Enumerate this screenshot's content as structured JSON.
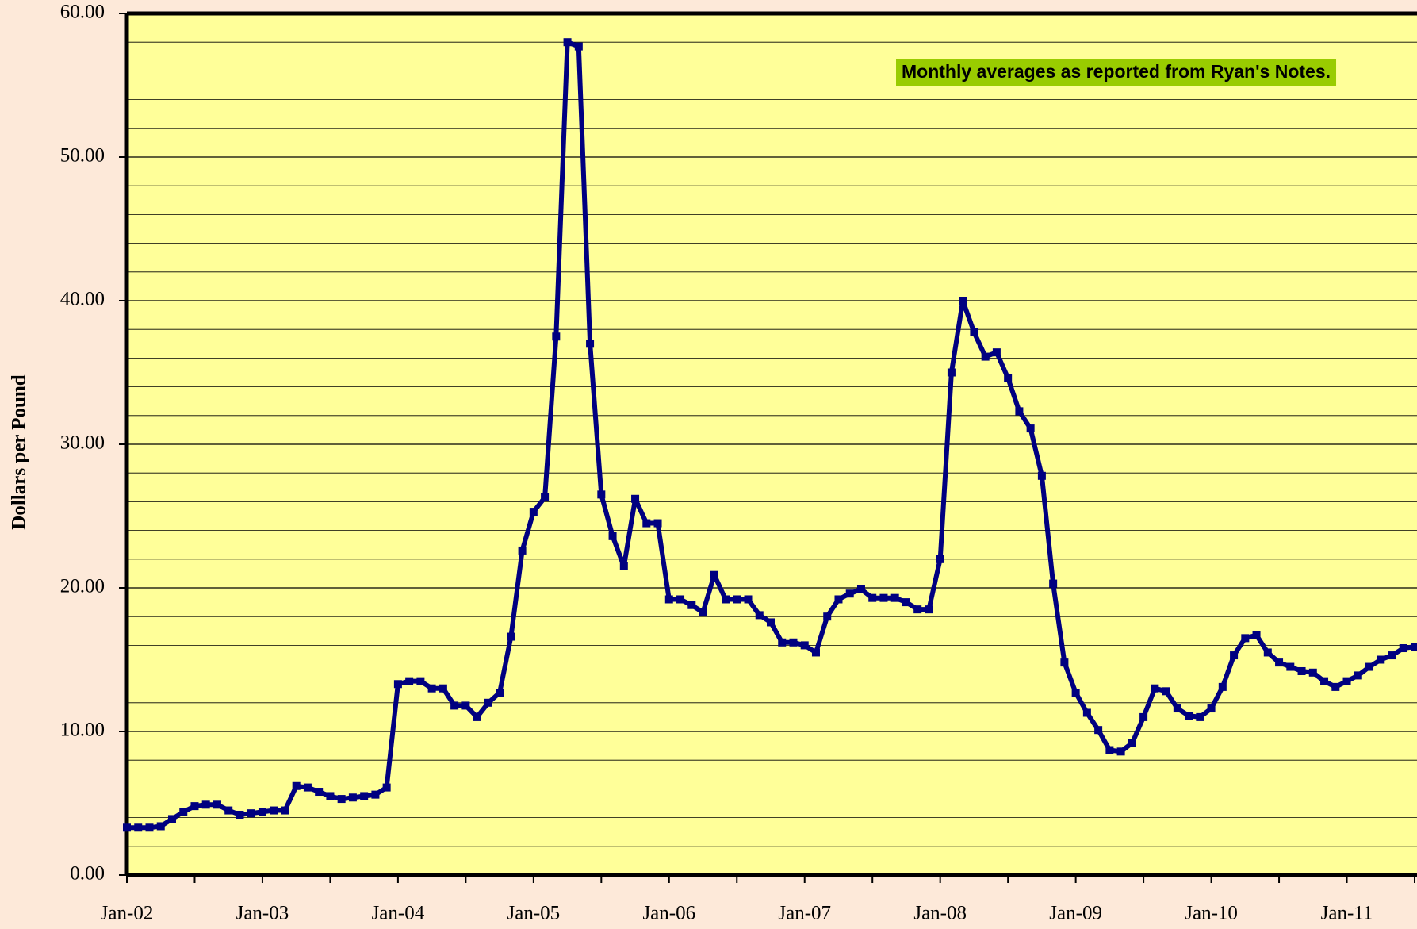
{
  "chart_data": {
    "type": "line",
    "ylabel": "Dollars per Pound",
    "annotation": "Monthly averages as reported from Ryan's Notes.",
    "categories": [
      "Jan-02",
      null,
      null,
      null,
      null,
      null,
      null,
      null,
      null,
      null,
      null,
      null,
      "Jan-03",
      null,
      null,
      null,
      null,
      null,
      null,
      null,
      null,
      null,
      null,
      null,
      "Jan-04",
      null,
      null,
      null,
      null,
      null,
      null,
      null,
      null,
      null,
      null,
      null,
      "Jan-05",
      null,
      null,
      null,
      null,
      null,
      null,
      null,
      null,
      null,
      null,
      null,
      "Jan-06",
      null,
      null,
      null,
      null,
      null,
      null,
      null,
      null,
      null,
      null,
      null,
      "Jan-07",
      null,
      null,
      null,
      null,
      null,
      null,
      null,
      null,
      null,
      null,
      null,
      "Jan-08",
      null,
      null,
      null,
      null,
      null,
      null,
      null,
      null,
      null,
      null,
      null,
      "Jan-09",
      null,
      null,
      null,
      null,
      null,
      null,
      null,
      null,
      null,
      null,
      null,
      "Jan-10",
      null,
      null,
      null,
      null,
      null,
      null,
      null,
      null,
      null,
      null,
      null,
      "Jan-11",
      null,
      null,
      null,
      null,
      null,
      null
    ],
    "series": [
      {
        "color": "#000080",
        "values": [
          3.3,
          3.3,
          3.3,
          3.4,
          3.9,
          4.4,
          4.8,
          4.9,
          4.9,
          4.5,
          4.2,
          4.3,
          4.4,
          4.5,
          4.5,
          6.2,
          6.1,
          5.8,
          5.5,
          5.3,
          5.4,
          5.5,
          5.6,
          6.1,
          13.3,
          13.5,
          13.5,
          13.0,
          13.0,
          11.8,
          11.8,
          11.0,
          12.0,
          12.7,
          16.6,
          22.6,
          25.3,
          26.3,
          37.5,
          58.0,
          57.7,
          37.0,
          26.5,
          23.6,
          21.5,
          26.2,
          24.5,
          24.5,
          19.2,
          19.2,
          18.8,
          18.3,
          20.9,
          19.2,
          19.2,
          19.2,
          18.1,
          17.6,
          16.2,
          16.2,
          16.0,
          15.5,
          18.0,
          19.2,
          19.6,
          19.9,
          19.3,
          19.3,
          19.3,
          19.0,
          18.5,
          18.5,
          22.0,
          35.0,
          40.0,
          37.8,
          36.1,
          36.4,
          34.6,
          32.3,
          31.1,
          27.8,
          20.3,
          14.8,
          12.7,
          11.3,
          10.1,
          8.7,
          8.6,
          9.2,
          11.0,
          13.0,
          12.8,
          11.6,
          11.1,
          11.0,
          11.6,
          13.1,
          15.3,
          16.5,
          16.7,
          15.5,
          14.8,
          14.5,
          14.2,
          14.1,
          13.5,
          13.1,
          13.5,
          13.9,
          14.5,
          15.0,
          15.3,
          15.8,
          15.9
        ]
      }
    ],
    "ylim": [
      0,
      60
    ],
    "yticks": [
      {
        "value": 0,
        "label": "0.00"
      },
      {
        "value": 10,
        "label": "10.00"
      },
      {
        "value": 20,
        "label": "20.00"
      },
      {
        "value": 30,
        "label": "30.00"
      },
      {
        "value": 40,
        "label": "40.00"
      },
      {
        "value": 50,
        "label": "50.00"
      },
      {
        "value": 60,
        "label": "60.00"
      }
    ],
    "minor_yticks": [
      2,
      4,
      6,
      8,
      12,
      14,
      16,
      18,
      22,
      24,
      26,
      28,
      32,
      34,
      36,
      38,
      42,
      44,
      46,
      48,
      52,
      54,
      56,
      58
    ],
    "plot_background": "#ffff99",
    "annotation_background": "#99cc00",
    "grid": true
  }
}
